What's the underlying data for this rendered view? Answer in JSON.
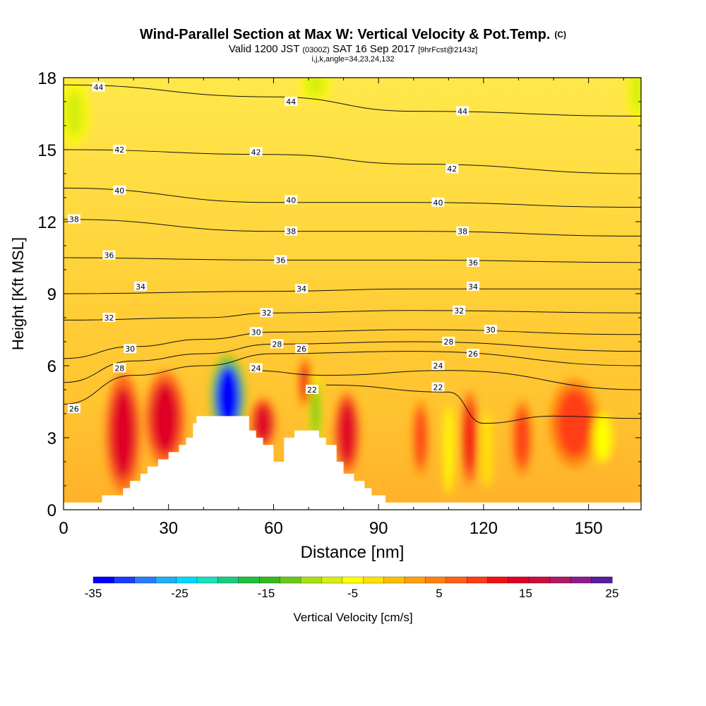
{
  "chart_data": {
    "type": "heatmap",
    "title": "Wind-Parallel Section at Max W: Vertical Velocity & Pot.Temp.",
    "title_mark": "(C)",
    "subtitle": {
      "valid": "Valid 1200 JST",
      "zulu": "(0300Z)",
      "date": "SAT 16 Sep 2017",
      "fcst": "[9hrFcst@2143z]"
    },
    "subtitle2": "i,j,k,angle=34,23,24,132",
    "xlabel": "Distance [nm]",
    "ylabel": "Height [Kft MSL]",
    "xlim": [
      0,
      165
    ],
    "ylim": [
      0,
      18
    ],
    "xticks": [
      0,
      30,
      60,
      90,
      120,
      150
    ],
    "yticks": [
      0,
      3,
      6,
      9,
      12,
      15,
      18
    ],
    "colorbar": {
      "label": "Vertical Velocity [cm/s]",
      "range": [
        -35,
        25
      ],
      "ticks": [
        -35,
        -25,
        -15,
        -5,
        5,
        15,
        25
      ],
      "colors": [
        "#0000ff",
        "#1a3cff",
        "#2a7bff",
        "#22aef2",
        "#00d8ff",
        "#15e0c0",
        "#18cc80",
        "#20c040",
        "#38b820",
        "#68c818",
        "#a8e010",
        "#d8ee10",
        "#ffff00",
        "#ffe000",
        "#ffc000",
        "#ffa010",
        "#ff8010",
        "#ff6018",
        "#ff3c14",
        "#f01010",
        "#e00028",
        "#c8103c",
        "#b01868",
        "#8c1c8c",
        "#5a1c9c"
      ]
    },
    "terrain": [
      [
        0,
        0.3
      ],
      [
        11,
        0.3
      ],
      [
        11,
        0.6
      ],
      [
        17,
        0.6
      ],
      [
        17,
        0.9
      ],
      [
        19,
        0.9
      ],
      [
        19,
        1.2
      ],
      [
        22,
        1.2
      ],
      [
        22,
        1.5
      ],
      [
        24,
        1.5
      ],
      [
        24,
        1.8
      ],
      [
        27,
        1.8
      ],
      [
        27,
        2.1
      ],
      [
        30,
        2.1
      ],
      [
        30,
        2.4
      ],
      [
        33,
        2.4
      ],
      [
        33,
        2.7
      ],
      [
        35,
        2.7
      ],
      [
        35,
        3.0
      ],
      [
        37,
        3.0
      ],
      [
        37,
        3.6
      ],
      [
        38,
        3.6
      ],
      [
        38,
        3.9
      ],
      [
        53,
        3.9
      ],
      [
        53,
        3.3
      ],
      [
        55,
        3.3
      ],
      [
        55,
        3.0
      ],
      [
        57,
        3.0
      ],
      [
        57,
        2.7
      ],
      [
        60,
        2.7
      ],
      [
        60,
        2.0
      ],
      [
        63,
        2.0
      ],
      [
        63,
        3.0
      ],
      [
        66,
        3.0
      ],
      [
        66,
        3.3
      ],
      [
        73,
        3.3
      ],
      [
        73,
        3.0
      ],
      [
        75,
        3.0
      ],
      [
        75,
        2.7
      ],
      [
        78,
        2.7
      ],
      [
        78,
        2.0
      ],
      [
        80,
        2.0
      ],
      [
        80,
        1.5
      ],
      [
        83,
        1.5
      ],
      [
        83,
        1.2
      ],
      [
        86,
        1.2
      ],
      [
        86,
        0.9
      ],
      [
        88,
        0.9
      ],
      [
        88,
        0.6
      ],
      [
        92,
        0.6
      ],
      [
        92,
        0.3
      ],
      [
        165,
        0.3
      ]
    ],
    "w_features": [
      {
        "x": 17,
        "y": 3.2,
        "rx": 3.5,
        "ry": 1.9,
        "w": 15
      },
      {
        "x": 29,
        "y": 3.8,
        "rx": 4,
        "ry": 1.5,
        "w": 13
      },
      {
        "x": 47,
        "y": 4.7,
        "rx": 3.5,
        "ry": 1.3,
        "w": -33
      },
      {
        "x": 57,
        "y": 3.6,
        "rx": 2.5,
        "ry": 0.8,
        "w": 13
      },
      {
        "x": 69,
        "y": 5.3,
        "rx": 1.2,
        "ry": 0.8,
        "w": 11
      },
      {
        "x": 81,
        "y": 3.2,
        "rx": 2.5,
        "ry": 1.3,
        "w": 15
      },
      {
        "x": 102,
        "y": 3.0,
        "rx": 1.5,
        "ry": 1.2,
        "w": 10
      },
      {
        "x": 116,
        "y": 3.0,
        "rx": 1.5,
        "ry": 1.5,
        "w": 12
      },
      {
        "x": 131,
        "y": 3.0,
        "rx": 2,
        "ry": 1.2,
        "w": 9
      },
      {
        "x": 146,
        "y": 3.6,
        "rx": 5,
        "ry": 1.4,
        "w": 10
      },
      {
        "x": 72,
        "y": 4.1,
        "rx": 1.2,
        "ry": 1.2,
        "w": -12
      },
      {
        "x": 110,
        "y": 2.5,
        "rx": 1,
        "ry": 1.5,
        "w": -5
      },
      {
        "x": 121,
        "y": 2.5,
        "rx": 1,
        "ry": 1.2,
        "w": -3
      },
      {
        "x": 154,
        "y": 3.0,
        "rx": 2,
        "ry": 0.8,
        "w": -5
      },
      {
        "x": 3,
        "y": 16.5,
        "rx": 3,
        "ry": 1.0,
        "w": -8
      },
      {
        "x": 72,
        "y": 17.7,
        "rx": 3,
        "ry": 0.5,
        "w": -8
      },
      {
        "x": 164,
        "y": 17.5,
        "rx": 2,
        "ry": 1,
        "w": -7
      }
    ],
    "isentropes": [
      {
        "theta": 22,
        "pts": [
          [
            75,
            5.2
          ],
          [
            110,
            4.9
          ],
          [
            120,
            3.6
          ],
          [
            140,
            3.9
          ],
          [
            165,
            3.8
          ]
        ]
      },
      {
        "theta": 24,
        "pts": [
          [
            53,
            5.8
          ],
          [
            75,
            5.6
          ],
          [
            110,
            5.8
          ],
          [
            165,
            5.0
          ]
        ]
      },
      {
        "theta": 26,
        "pts": [
          [
            0,
            4.4
          ],
          [
            20,
            5.6
          ],
          [
            40,
            6.0
          ],
          [
            60,
            6.5
          ],
          [
            100,
            6.6
          ],
          [
            165,
            6.0
          ]
        ]
      },
      {
        "theta": 28,
        "pts": [
          [
            0,
            5.3
          ],
          [
            20,
            6.2
          ],
          [
            40,
            6.5
          ],
          [
            60,
            6.9
          ],
          [
            100,
            7.0
          ],
          [
            165,
            6.6
          ]
        ]
      },
      {
        "theta": 30,
        "pts": [
          [
            0,
            6.3
          ],
          [
            20,
            6.8
          ],
          [
            40,
            7.1
          ],
          [
            60,
            7.4
          ],
          [
            100,
            7.5
          ],
          [
            165,
            7.3
          ]
        ]
      },
      {
        "theta": 32,
        "pts": [
          [
            0,
            7.9
          ],
          [
            40,
            8.0
          ],
          [
            60,
            8.2
          ],
          [
            100,
            8.3
          ],
          [
            165,
            8.2
          ]
        ]
      },
      {
        "theta": 34,
        "pts": [
          [
            0,
            9.0
          ],
          [
            60,
            9.1
          ],
          [
            100,
            9.2
          ],
          [
            165,
            9.2
          ]
        ]
      },
      {
        "theta": 36,
        "pts": [
          [
            0,
            10.5
          ],
          [
            60,
            10.4
          ],
          [
            100,
            10.4
          ],
          [
            165,
            10.3
          ]
        ]
      },
      {
        "theta": 38,
        "pts": [
          [
            0,
            12.1
          ],
          [
            60,
            11.6
          ],
          [
            100,
            11.6
          ],
          [
            165,
            11.4
          ]
        ]
      },
      {
        "theta": 40,
        "pts": [
          [
            0,
            13.4
          ],
          [
            60,
            12.8
          ],
          [
            100,
            12.8
          ],
          [
            165,
            12.6
          ]
        ]
      },
      {
        "theta": 42,
        "pts": [
          [
            0,
            15.0
          ],
          [
            60,
            14.8
          ],
          [
            100,
            14.4
          ],
          [
            165,
            14.0
          ]
        ]
      },
      {
        "theta": 44,
        "pts": [
          [
            0,
            17.7
          ],
          [
            60,
            17.2
          ],
          [
            100,
            16.6
          ],
          [
            165,
            16.4
          ]
        ]
      }
    ],
    "contour_labels": [
      {
        "text": "44",
        "x": 10,
        "y": 17.6
      },
      {
        "text": "44",
        "x": 65,
        "y": 17.0
      },
      {
        "text": "44",
        "x": 114,
        "y": 16.6
      },
      {
        "text": "42",
        "x": 16,
        "y": 15.0
      },
      {
        "text": "42",
        "x": 55,
        "y": 14.9
      },
      {
        "text": "42",
        "x": 111,
        "y": 14.2
      },
      {
        "text": "40",
        "x": 16,
        "y": 13.3
      },
      {
        "text": "40",
        "x": 65,
        "y": 12.9
      },
      {
        "text": "40",
        "x": 107,
        "y": 12.8
      },
      {
        "text": "38",
        "x": 3,
        "y": 12.1
      },
      {
        "text": "38",
        "x": 65,
        "y": 11.6
      },
      {
        "text": "38",
        "x": 114,
        "y": 11.6
      },
      {
        "text": "36",
        "x": 13,
        "y": 10.6
      },
      {
        "text": "36",
        "x": 62,
        "y": 10.4
      },
      {
        "text": "36",
        "x": 117,
        "y": 10.3
      },
      {
        "text": "34",
        "x": 22,
        "y": 9.3
      },
      {
        "text": "34",
        "x": 68,
        "y": 9.2
      },
      {
        "text": "34",
        "x": 117,
        "y": 9.3
      },
      {
        "text": "32",
        "x": 13,
        "y": 8.0
      },
      {
        "text": "32",
        "x": 58,
        "y": 8.2
      },
      {
        "text": "32",
        "x": 113,
        "y": 8.3
      },
      {
        "text": "30",
        "x": 19,
        "y": 6.7
      },
      {
        "text": "30",
        "x": 55,
        "y": 7.4
      },
      {
        "text": "30",
        "x": 122,
        "y": 7.5
      },
      {
        "text": "28",
        "x": 16,
        "y": 5.9
      },
      {
        "text": "28",
        "x": 61,
        "y": 6.9
      },
      {
        "text": "28",
        "x": 110,
        "y": 7.0
      },
      {
        "text": "26",
        "x": 3,
        "y": 4.2
      },
      {
        "text": "26",
        "x": 68,
        "y": 6.7
      },
      {
        "text": "26",
        "x": 117,
        "y": 6.5
      },
      {
        "text": "24",
        "x": 55,
        "y": 5.9
      },
      {
        "text": "24",
        "x": 107,
        "y": 6.0
      },
      {
        "text": "22",
        "x": 71,
        "y": 5.0
      },
      {
        "text": "22",
        "x": 107,
        "y": 5.1
      }
    ]
  }
}
